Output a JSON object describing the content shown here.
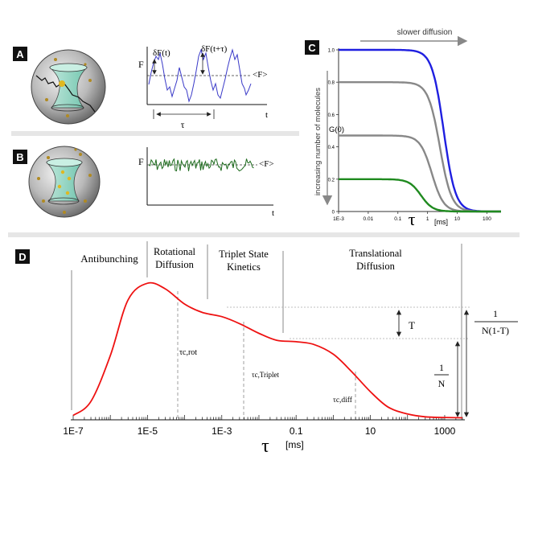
{
  "panels": {
    "A": {
      "label": "A",
      "y_label": "F",
      "dF_t": "δF(t)",
      "dF_t_tau": "δF(t+τ)",
      "mean": "<F>",
      "tau": "τ",
      "t": "t"
    },
    "B": {
      "label": "B",
      "y_label": "F",
      "mean": "<F>",
      "t": "t"
    },
    "C": {
      "label": "C",
      "top_arrow": "slower diffusion",
      "side_arrow": "increasing number of molecules",
      "g0": "G(0)",
      "x_label": "τ",
      "x_unit": "[ms]"
    },
    "D": {
      "label": "D",
      "regions": {
        "antibunching": "Antibunching",
        "rotational_1": "Rotational",
        "rotational_2": "Diffusion",
        "triplet_1": "Triplet State",
        "triplet_2": "Kinetics",
        "translational_1": "Translational",
        "translational_2": "Diffusion"
      },
      "markers": {
        "rot": "τc,rot",
        "triplet": "τc,Triplet",
        "diff": "τc,diff"
      },
      "T_label": "T",
      "inv_N_num": "1",
      "inv_N_den": "N",
      "inv_NT_num": "1",
      "inv_NT_den": "N(1-T)",
      "x_label": "τ",
      "x_unit": "[ms]"
    }
  },
  "chart_data": [
    {
      "type": "line",
      "title": "",
      "xlabel": "τ [ms]",
      "ylabel": "G(0)",
      "xscale": "log",
      "xlim": [
        0.001,
        300
      ],
      "ylim": [
        0,
        1.0
      ],
      "x_ticks": [
        "1E-3",
        "0.01",
        "0.1",
        "1",
        "10",
        "100"
      ],
      "y_ticks": [
        "0",
        "0.2",
        "0.4",
        "0.6",
        "0.8",
        "1.0"
      ],
      "series": [
        {
          "color": "#1f1fe0",
          "G0": 1.0,
          "tau_half_ms": 3.5
        },
        {
          "color": "#888888",
          "G0": 0.8,
          "tau_half_ms": 2.6
        },
        {
          "color": "#888888",
          "G0": 0.47,
          "tau_half_ms": 1.4
        },
        {
          "color": "#1f8a1f",
          "G0": 0.2,
          "tau_half_ms": 0.6
        }
      ]
    },
    {
      "type": "line",
      "title": "",
      "xlabel": "τ [ms]",
      "xscale": "log",
      "x_ticks": [
        "1E-7",
        "1E-5",
        "1E-3",
        "0.1",
        "10",
        "1000"
      ],
      "series": [
        {
          "color": "#ee1111",
          "x": [
            1e-07,
            3e-07,
            1e-06,
            3e-06,
            1e-05,
            3e-05,
            0.0001,
            0.0003,
            0.001,
            0.003,
            0.01,
            0.03,
            0.1,
            0.3,
            1,
            3,
            10,
            30,
            100,
            300,
            1000,
            3000
          ],
          "y": [
            0.02,
            0.12,
            0.45,
            0.85,
            0.97,
            0.93,
            0.82,
            0.76,
            0.73,
            0.68,
            0.61,
            0.56,
            0.55,
            0.53,
            0.46,
            0.34,
            0.19,
            0.08,
            0.03,
            0.01,
            0.005,
            0.003
          ]
        }
      ],
      "regions": [
        "Antibunching",
        "Rotational Diffusion",
        "Triplet State Kinetics",
        "Translational Diffusion"
      ]
    }
  ]
}
